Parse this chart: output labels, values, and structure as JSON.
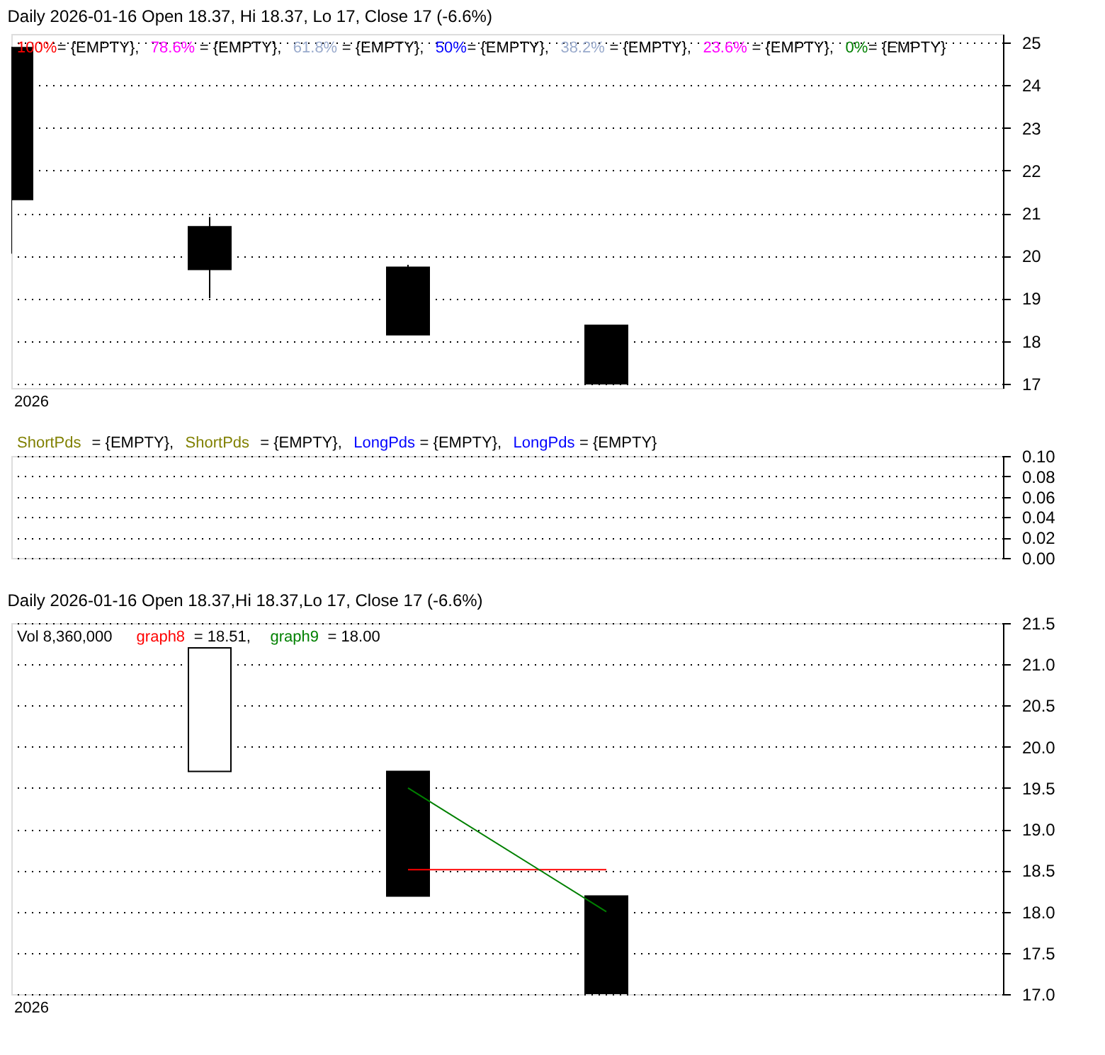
{
  "chart_data": [
    {
      "type": "candlestick",
      "title": "Daily 2026-01-16 Open 18.37, Hi 18.37, Lo 17, Close 17 (-6.6%)",
      "categories": [
        null,
        null,
        null,
        null,
        null,
        null
      ],
      "ohlc": [
        [
          24.88,
          24.9,
          20.05,
          21.32
        ],
        [
          20.68,
          20.91,
          19.01,
          19.68
        ],
        [
          19.73,
          19.79,
          18.15,
          18.15
        ],
        [
          18.37,
          18.37,
          17,
          17
        ],
        null,
        null
      ],
      "series": [
        {
          "name": "100%",
          "color": "#ff0000",
          "type": "line",
          "values": [
            null,
            null,
            null,
            null,
            null,
            null
          ]
        },
        {
          "name": "78.6%",
          "color": "#ff00ff",
          "type": "line",
          "values": [
            null,
            null,
            null,
            null,
            null,
            null
          ]
        },
        {
          "name": "61.8%",
          "color": "#99aacc",
          "type": "line",
          "values": [
            null,
            null,
            null,
            null,
            null,
            null
          ]
        },
        {
          "name": "50%",
          "color": "#0000ff",
          "type": "line",
          "values": [
            null,
            null,
            null,
            null,
            null,
            null
          ]
        },
        {
          "name": "38.2%",
          "color": "#99aacc",
          "type": "line",
          "values": [
            null,
            null,
            null,
            null,
            null,
            null
          ]
        },
        {
          "name": "23.6%",
          "color": "#ff00ff",
          "type": "line",
          "values": [
            null,
            null,
            null,
            null,
            null,
            null
          ]
        },
        {
          "name": "0%",
          "color": "#008000",
          "type": "line",
          "values": [
            null,
            null,
            null,
            null,
            null,
            null
          ]
        }
      ],
      "annotations": [
        "2026",
        "= {EMPTY},",
        "= {EMPTY},",
        "= {EMPTY},",
        "= {EMPTY},",
        "= {EMPTY},",
        "= {EMPTY},",
        "= {EMPTY}"
      ],
      "ylim": [
        16.9,
        25.2
      ],
      "yticks": [
        17,
        18,
        19,
        20,
        21,
        22,
        23,
        24,
        25
      ],
      "grid": "y",
      "tick_labels": "y"
    },
    {
      "type": "line",
      "categories": [
        null,
        null,
        null,
        null,
        null,
        null
      ],
      "series": [
        {
          "name": "ShortPds",
          "color": "#808000",
          "values": [
            null,
            null,
            null,
            null,
            null,
            null
          ]
        },
        {
          "name": "ShortPds",
          "color": "#808000",
          "values": [
            null,
            null,
            null,
            null,
            null,
            null
          ]
        },
        {
          "name": "LongPds",
          "color": "#0000ff",
          "values": [
            null,
            null,
            null,
            null,
            null,
            null
          ]
        },
        {
          "name": "LongPds",
          "color": "#0000ff",
          "values": [
            null,
            null,
            null,
            null,
            null,
            null
          ]
        }
      ],
      "annotations": [
        "= {EMPTY},",
        "= {EMPTY},",
        "= {EMPTY},",
        "= {EMPTY}"
      ],
      "ylim": [
        0,
        0.1
      ],
      "yticks": [
        {
          "value": 0,
          "label": "0.00"
        },
        {
          "value": 0.02,
          "label": "0.02"
        },
        {
          "value": 0.04,
          "label": "0.04"
        },
        {
          "value": 0.06,
          "label": "0.06"
        },
        {
          "value": 0.08,
          "label": "0.08"
        },
        {
          "value": 0.1,
          "label": "0.10"
        }
      ],
      "grid": "y",
      "tick_labels": "y"
    },
    {
      "type": "candlestick",
      "title": "Daily 2026-01-16 Open 18.37,Hi 18.37,Lo 17, Close 17 (-6.6%)",
      "subtitle": "Vol 8,360,000",
      "categories": [
        null,
        null,
        null,
        null,
        null,
        null
      ],
      "ohlc": [
        null,
        [
          19.7,
          21.2,
          19.7,
          21.2
        ],
        [
          19.7,
          19.7,
          18.19,
          18.19
        ],
        [
          18.19,
          18.19,
          17,
          17
        ],
        null,
        null
      ],
      "series": [
        {
          "name": "graph8",
          "color": "#ff0000",
          "type": "line",
          "values": [
            null,
            null,
            18.51,
            18.51,
            null,
            null
          ]
        },
        {
          "name": "graph9",
          "color": "#008000",
          "type": "line",
          "values": [
            null,
            null,
            19.5,
            18.0,
            null,
            null
          ]
        }
      ],
      "annotations": [
        "2026",
        "= 18.51,",
        "= 18.00"
      ],
      "ylim": [
        17,
        21.5
      ],
      "yticks": [
        {
          "value": 17,
          "label": "17.0"
        },
        {
          "value": 17.5,
          "label": "17.5"
        },
        {
          "value": 18,
          "label": "18.0"
        },
        {
          "value": 18.5,
          "label": "18.5"
        },
        {
          "value": 19,
          "label": "19.0"
        },
        {
          "value": 19.5,
          "label": "19.5"
        },
        {
          "value": 20,
          "label": "20.0"
        },
        {
          "value": 20.5,
          "label": "20.5"
        },
        {
          "value": 21,
          "label": "21.0"
        },
        {
          "value": 21.5,
          "label": "21.5"
        }
      ],
      "grid": "y",
      "legend": "top left",
      "tick_labels": "y"
    }
  ]
}
